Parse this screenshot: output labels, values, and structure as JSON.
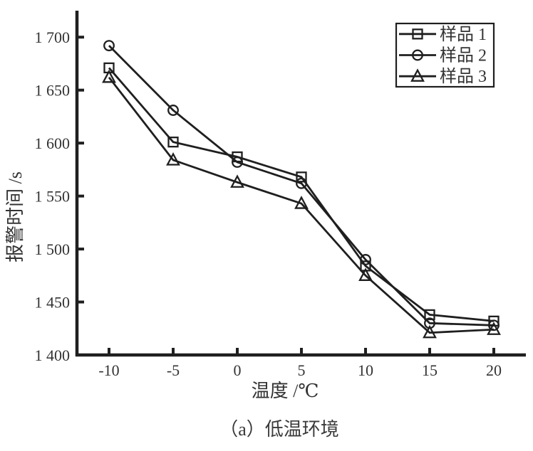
{
  "figure": {
    "caption": "（a）低温环境"
  },
  "chart_data": {
    "type": "line",
    "title": "",
    "xlabel": "温度 /℃",
    "ylabel": "报警时间 /s",
    "x": [
      -10,
      -5,
      0,
      5,
      10,
      15,
      20
    ],
    "x_tick_labels": [
      "-10",
      "-5",
      "0",
      "5",
      "10",
      "15",
      "20"
    ],
    "y_ticks": [
      1400,
      1450,
      1500,
      1550,
      1600,
      1650,
      1700
    ],
    "y_tick_labels": [
      "1 400",
      "1 450",
      "1 500",
      "1 550",
      "1 600",
      "1 650",
      "1 700"
    ],
    "xlim": [
      -12.5,
      22.5
    ],
    "ylim": [
      1400,
      1725
    ],
    "grid": false,
    "legend_position": "top-right",
    "series": [
      {
        "name": "样品 1",
        "marker": "square",
        "values": [
          1671,
          1601,
          1587,
          1568,
          1484,
          1438,
          1432
        ]
      },
      {
        "name": "样品 2",
        "marker": "circle",
        "values": [
          1692,
          1631,
          1582,
          1562,
          1490,
          1430,
          1428
        ]
      },
      {
        "name": "样品 3",
        "marker": "triangle",
        "values": [
          1662,
          1584,
          1563,
          1543,
          1475,
          1421,
          1424
        ]
      }
    ],
    "line_color": "#1f1f1f",
    "text_color": "#333333"
  }
}
